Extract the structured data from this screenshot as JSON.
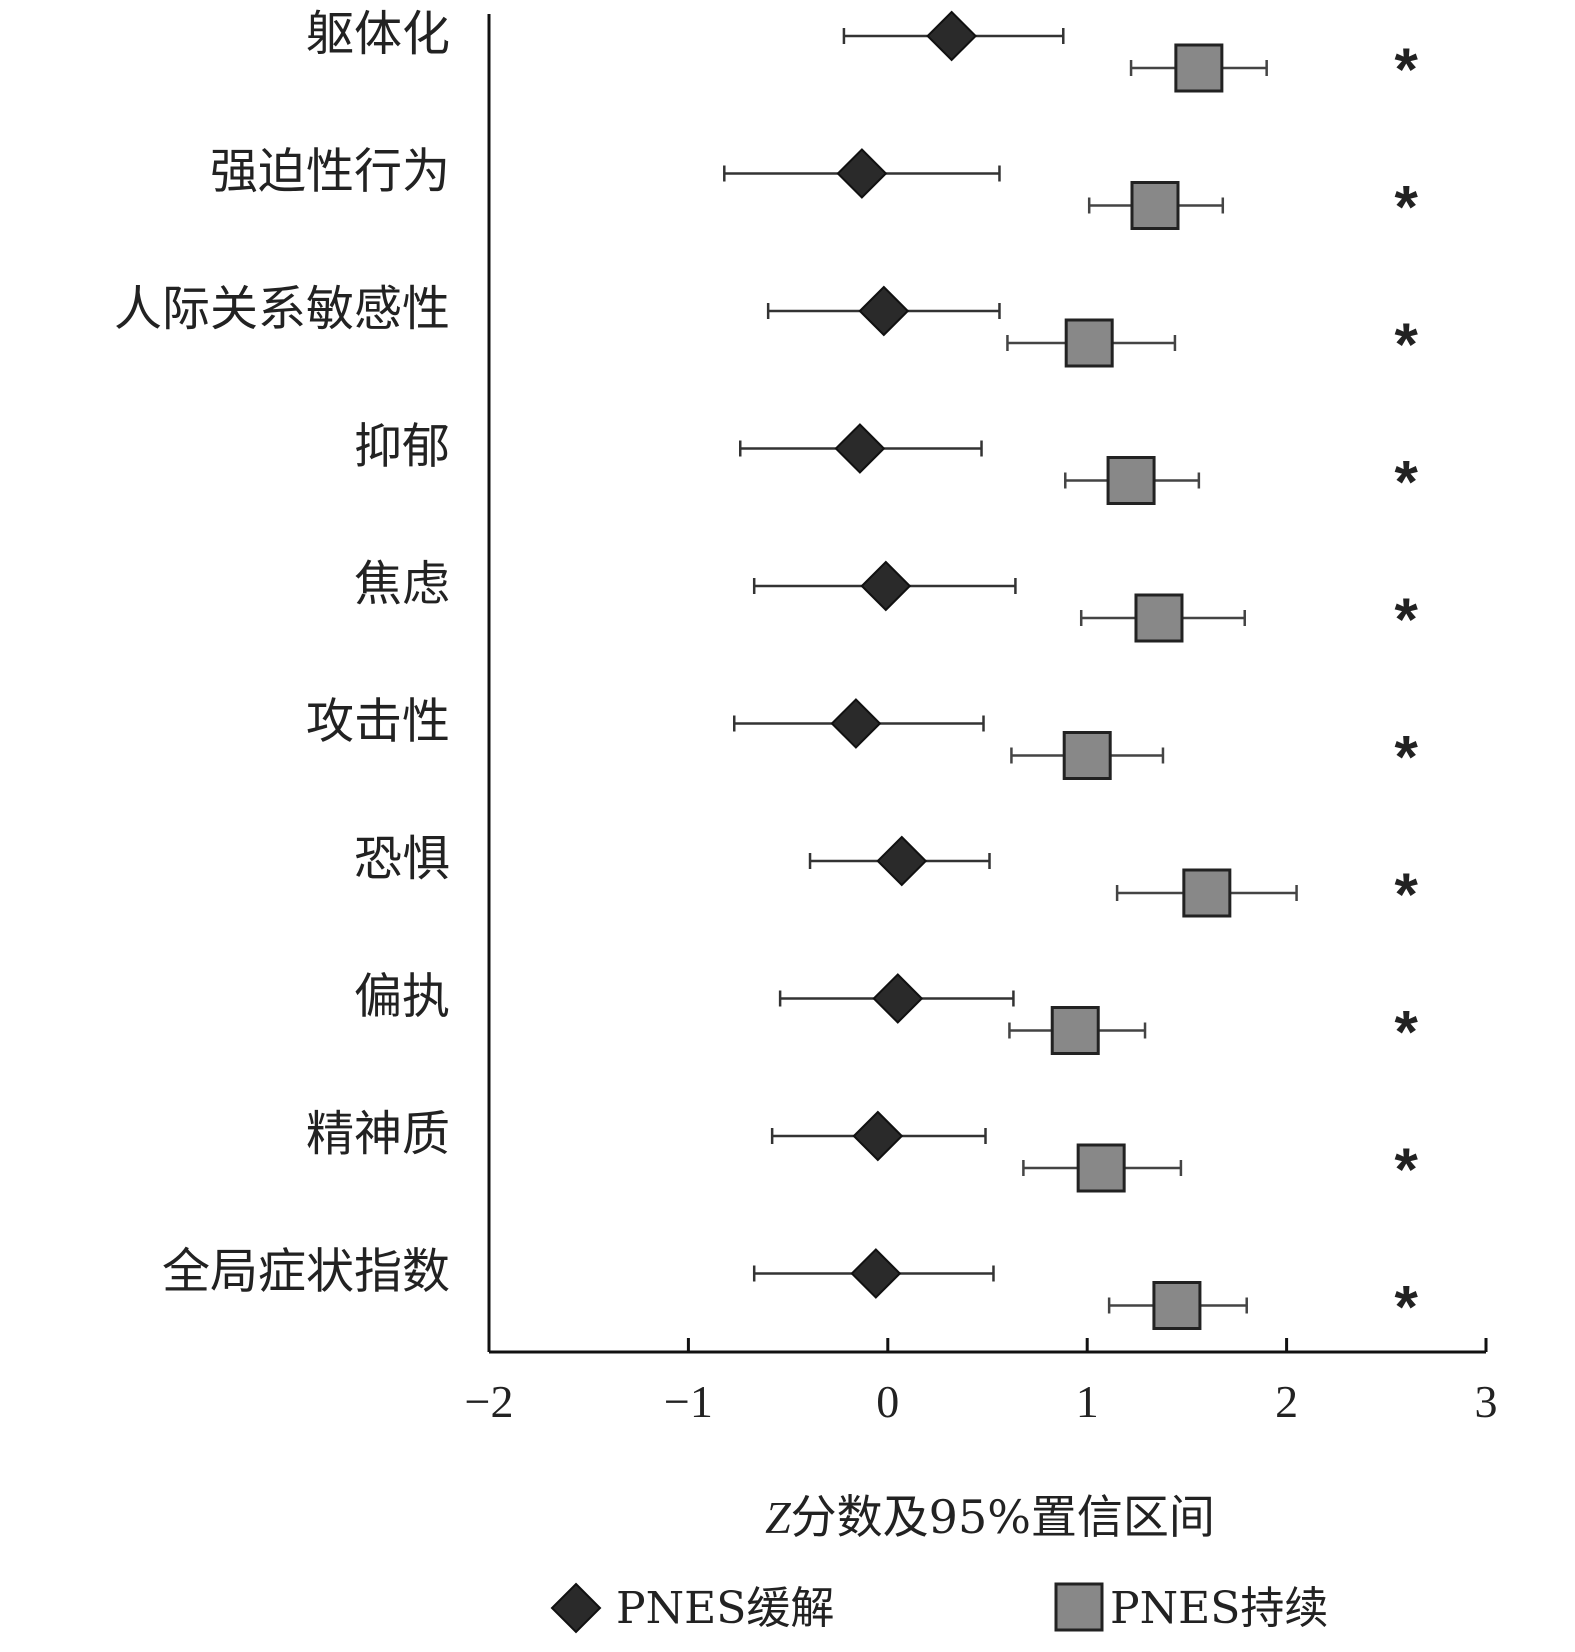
{
  "chart_data": {
    "type": "scatter",
    "subtype": "forest-plot",
    "categories": [
      "躯体化",
      "强迫性行为",
      "人际关系敏感性",
      "抑郁",
      "焦虑",
      "攻击性",
      "恐惧",
      "偏执",
      "精神质",
      "全局症状指数"
    ],
    "xlabel_prefix": "Z",
    "xlabel": "分数及95%置信区间",
    "xlim": [
      -2,
      3
    ],
    "xticks": [
      -2,
      -1,
      0,
      1,
      2,
      3
    ],
    "xtick_labels": [
      "−2",
      "−1",
      "0",
      "1",
      "2",
      "3"
    ],
    "legend_position": "bottom",
    "series": [
      {
        "name": "PNES缓解",
        "marker": "diamond",
        "color": "#2a2a2a",
        "values": [
          0.32,
          -0.13,
          -0.02,
          -0.14,
          -0.01,
          -0.16,
          0.07,
          0.05,
          -0.05,
          -0.06
        ],
        "ci_low": [
          -0.22,
          -0.82,
          -0.6,
          -0.74,
          -0.67,
          -0.77,
          -0.39,
          -0.54,
          -0.58,
          -0.67
        ],
        "ci_high": [
          0.88,
          0.56,
          0.56,
          0.47,
          0.64,
          0.48,
          0.51,
          0.63,
          0.49,
          0.53
        ]
      },
      {
        "name": "PNES持续",
        "marker": "square",
        "color": "#888888",
        "values": [
          1.56,
          1.34,
          1.01,
          1.22,
          1.36,
          1.0,
          1.6,
          0.94,
          1.07,
          1.45
        ],
        "ci_low": [
          1.22,
          1.01,
          0.6,
          0.89,
          0.97,
          0.62,
          1.15,
          0.61,
          0.68,
          1.11
        ],
        "ci_high": [
          1.9,
          1.68,
          1.44,
          1.56,
          1.79,
          1.38,
          2.05,
          1.29,
          1.47,
          1.8
        ]
      }
    ],
    "significance_markers": [
      "*",
      "*",
      "*",
      "*",
      "*",
      "*",
      "*",
      "*",
      "*",
      "*"
    ],
    "significance_x": 2.6
  }
}
